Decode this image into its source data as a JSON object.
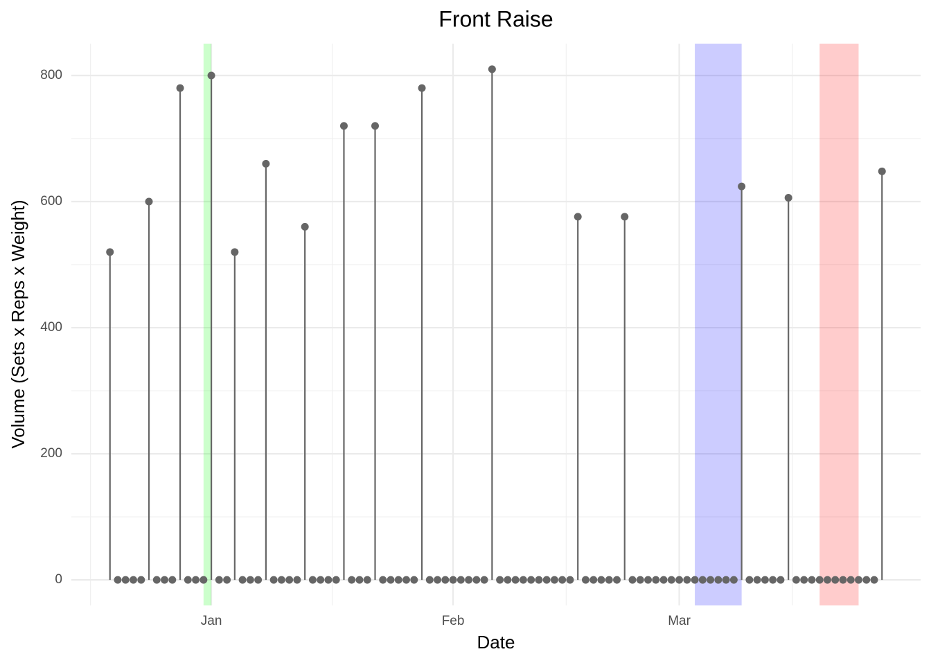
{
  "chart_data": {
    "type": "lollipop",
    "title": "Front Raise",
    "x_label": "Date",
    "y_label": "Volume (Sets x Reps x Weight)",
    "x": [
      -13,
      -12,
      -11,
      -10,
      -9,
      -8,
      -7,
      -6,
      -5,
      -4,
      -3,
      -2,
      -1,
      0,
      1,
      2,
      3,
      4,
      5,
      6,
      7,
      8,
      9,
      10,
      11,
      12,
      13,
      14,
      15,
      16,
      17,
      18,
      19,
      20,
      21,
      22,
      23,
      24,
      25,
      26,
      27,
      28,
      29,
      30,
      31,
      32,
      33,
      34,
      35,
      36,
      37,
      38,
      39,
      40,
      41,
      42,
      43,
      44,
      45,
      46,
      47,
      48,
      49,
      50,
      51,
      52,
      53,
      54,
      55,
      56,
      57,
      58,
      59,
      60,
      61,
      62,
      63,
      64,
      65,
      66,
      67,
      68,
      69,
      70,
      71,
      72,
      73,
      74,
      75,
      76,
      77,
      78,
      79,
      80,
      81,
      82,
      83,
      84,
      85,
      86
    ],
    "values": [
      520,
      0,
      0,
      0,
      0,
      600,
      0,
      0,
      0,
      780,
      0,
      0,
      0,
      800,
      0,
      0,
      520,
      0,
      0,
      0,
      660,
      0,
      0,
      0,
      0,
      560,
      0,
      0,
      0,
      0,
      720,
      0,
      0,
      0,
      720,
      0,
      0,
      0,
      0,
      0,
      780,
      0,
      0,
      0,
      0,
      0,
      0,
      0,
      0,
      810,
      0,
      0,
      0,
      0,
      0,
      0,
      0,
      0,
      0,
      0,
      576,
      0,
      0,
      0,
      0,
      0,
      576,
      0,
      0,
      0,
      0,
      0,
      0,
      0,
      0,
      0,
      0,
      0,
      0,
      0,
      0,
      624,
      0,
      0,
      0,
      0,
      0,
      606,
      0,
      0,
      0,
      0,
      0,
      0,
      0,
      0,
      0,
      0,
      0,
      648
    ],
    "color": "#666666",
    "shaded": [
      {
        "xmin": -1,
        "xmax": 0,
        "color": "#00ff00"
      },
      {
        "xmin": 62,
        "xmax": 68,
        "color": "#0000ff"
      },
      {
        "xmin": 78,
        "xmax": 83,
        "color": "#ff0000"
      }
    ],
    "xlim": [
      -17.95,
      90.95
    ],
    "xticks": [
      {
        "value": 0,
        "label": "Jan"
      },
      {
        "value": 31,
        "label": "Feb"
      },
      {
        "value": 60,
        "label": "Mar"
      }
    ],
    "ylim": [
      -40.5,
      850.5
    ],
    "yticks": [
      0,
      200,
      400,
      600,
      800
    ],
    "grid": true
  }
}
